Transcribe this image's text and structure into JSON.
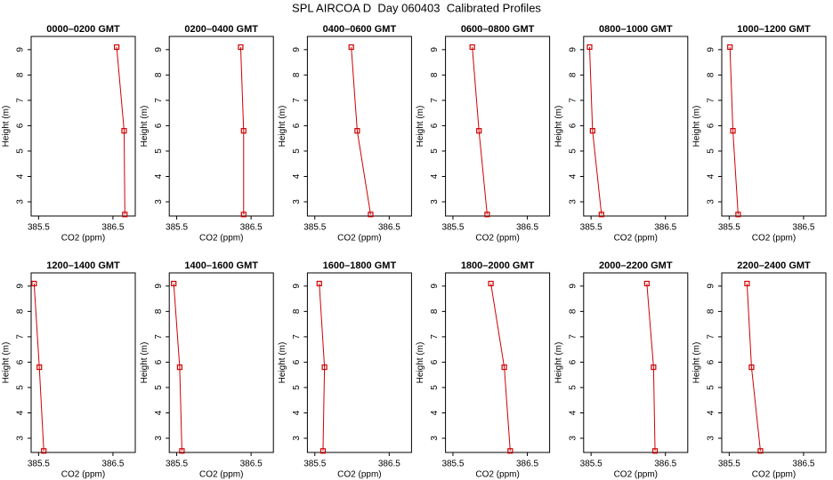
{
  "title": "SPL AIRCOA D  Day 060403  Calibrated Profiles",
  "chart_data": [
    {
      "type": "line",
      "title": "0000–0200 GMT",
      "xlabel": "CO2 (ppm)",
      "ylabel": "Height (m)",
      "color": "#d00000",
      "x": [
        386.55,
        386.65,
        386.66
      ],
      "values": [
        9.1,
        5.8,
        2.5
      ],
      "xlim": [
        385.4,
        386.8
      ],
      "ylim": [
        2.44,
        9.52
      ],
      "xticks": [
        385.5,
        386.5
      ],
      "yticks": [
        3,
        4,
        5,
        6,
        7,
        8,
        9
      ]
    },
    {
      "type": "line",
      "title": "0200–0400 GMT",
      "xlabel": "CO2 (ppm)",
      "ylabel": "Height (m)",
      "color": "#d00000",
      "x": [
        386.36,
        386.4,
        386.4
      ],
      "values": [
        9.1,
        5.8,
        2.5
      ],
      "xlim": [
        385.4,
        386.8
      ],
      "ylim": [
        2.44,
        9.52
      ],
      "xticks": [
        385.5,
        386.5
      ],
      "yticks": [
        3,
        4,
        5,
        6,
        7,
        8,
        9
      ]
    },
    {
      "type": "line",
      "title": "0400–0600 GMT",
      "xlabel": "CO2 (ppm)",
      "ylabel": "Height (m)",
      "color": "#d00000",
      "x": [
        385.99,
        386.07,
        386.25
      ],
      "values": [
        9.1,
        5.8,
        2.5
      ],
      "xlim": [
        385.4,
        386.8
      ],
      "ylim": [
        2.44,
        9.52
      ],
      "xticks": [
        385.5,
        386.5
      ],
      "yticks": [
        3,
        4,
        5,
        6,
        7,
        8,
        9
      ]
    },
    {
      "type": "line",
      "title": "0600–0800 GMT",
      "xlabel": "CO2 (ppm)",
      "ylabel": "Height (m)",
      "color": "#d00000",
      "x": [
        385.76,
        385.85,
        385.96
      ],
      "values": [
        9.1,
        5.8,
        2.5
      ],
      "xlim": [
        385.4,
        386.8
      ],
      "ylim": [
        2.44,
        9.52
      ],
      "xticks": [
        385.5,
        386.5
      ],
      "yticks": [
        3,
        4,
        5,
        6,
        7,
        8,
        9
      ]
    },
    {
      "type": "line",
      "title": "0800–1000 GMT",
      "xlabel": "CO2 (ppm)",
      "ylabel": "Height (m)",
      "color": "#d00000",
      "x": [
        385.48,
        385.52,
        385.64
      ],
      "values": [
        9.1,
        5.8,
        2.5
      ],
      "xlim": [
        385.4,
        386.8
      ],
      "ylim": [
        2.44,
        9.52
      ],
      "xticks": [
        385.5,
        386.5
      ],
      "yticks": [
        3,
        4,
        5,
        6,
        7,
        8,
        9
      ]
    },
    {
      "type": "line",
      "title": "1000–1200 GMT",
      "xlabel": "CO2 (ppm)",
      "ylabel": "Height (m)",
      "color": "#d00000",
      "x": [
        385.51,
        385.55,
        385.62
      ],
      "values": [
        9.1,
        5.8,
        2.5
      ],
      "xlim": [
        385.4,
        386.8
      ],
      "ylim": [
        2.44,
        9.52
      ],
      "xticks": [
        385.5,
        386.5
      ],
      "yticks": [
        3,
        4,
        5,
        6,
        7,
        8,
        9
      ]
    },
    {
      "type": "line",
      "title": "1200–1400 GMT",
      "xlabel": "CO2 (ppm)",
      "ylabel": "Height (m)",
      "color": "#d00000",
      "x": [
        385.44,
        385.51,
        385.57
      ],
      "values": [
        9.1,
        5.8,
        2.5
      ],
      "xlim": [
        385.4,
        386.8
      ],
      "ylim": [
        2.44,
        9.52
      ],
      "xticks": [
        385.5,
        386.5
      ],
      "yticks": [
        3,
        4,
        5,
        6,
        7,
        8,
        9
      ]
    },
    {
      "type": "line",
      "title": "1400–1600 GMT",
      "xlabel": "CO2 (ppm)",
      "ylabel": "Height (m)",
      "color": "#d00000",
      "x": [
        385.46,
        385.54,
        385.57
      ],
      "values": [
        9.1,
        5.8,
        2.5
      ],
      "xlim": [
        385.4,
        386.8
      ],
      "ylim": [
        2.44,
        9.52
      ],
      "xticks": [
        385.5,
        386.5
      ],
      "yticks": [
        3,
        4,
        5,
        6,
        7,
        8,
        9
      ]
    },
    {
      "type": "line",
      "title": "1600–1800 GMT",
      "xlabel": "CO2 (ppm)",
      "ylabel": "Height (m)",
      "color": "#d00000",
      "x": [
        385.56,
        385.63,
        385.61
      ],
      "values": [
        9.1,
        5.8,
        2.5
      ],
      "xlim": [
        385.4,
        386.8
      ],
      "ylim": [
        2.44,
        9.52
      ],
      "xticks": [
        385.5,
        386.5
      ],
      "yticks": [
        3,
        4,
        5,
        6,
        7,
        8,
        9
      ]
    },
    {
      "type": "line",
      "title": "1800–2000 GMT",
      "xlabel": "CO2 (ppm)",
      "ylabel": "Height (m)",
      "color": "#d00000",
      "x": [
        386.01,
        386.19,
        386.27
      ],
      "values": [
        9.1,
        5.8,
        2.5
      ],
      "xlim": [
        385.4,
        386.8
      ],
      "ylim": [
        2.44,
        9.52
      ],
      "xticks": [
        385.5,
        386.5
      ],
      "yticks": [
        3,
        4,
        5,
        6,
        7,
        8,
        9
      ]
    },
    {
      "type": "line",
      "title": "2000–2200 GMT",
      "xlabel": "CO2 (ppm)",
      "ylabel": "Height (m)",
      "color": "#d00000",
      "x": [
        386.25,
        386.34,
        386.36
      ],
      "values": [
        9.1,
        5.8,
        2.5
      ],
      "xlim": [
        385.4,
        386.8
      ],
      "ylim": [
        2.44,
        9.52
      ],
      "xticks": [
        385.5,
        386.5
      ],
      "yticks": [
        3,
        4,
        5,
        6,
        7,
        8,
        9
      ]
    },
    {
      "type": "line",
      "title": "2200–2400 GMT",
      "xlabel": "CO2 (ppm)",
      "ylabel": "Height (m)",
      "color": "#d00000",
      "x": [
        385.74,
        385.8,
        385.92
      ],
      "values": [
        9.1,
        5.8,
        2.5
      ],
      "xlim": [
        385.4,
        386.8
      ],
      "ylim": [
        2.44,
        9.52
      ],
      "xticks": [
        385.5,
        386.5
      ],
      "yticks": [
        3,
        4,
        5,
        6,
        7,
        8,
        9
      ]
    }
  ]
}
